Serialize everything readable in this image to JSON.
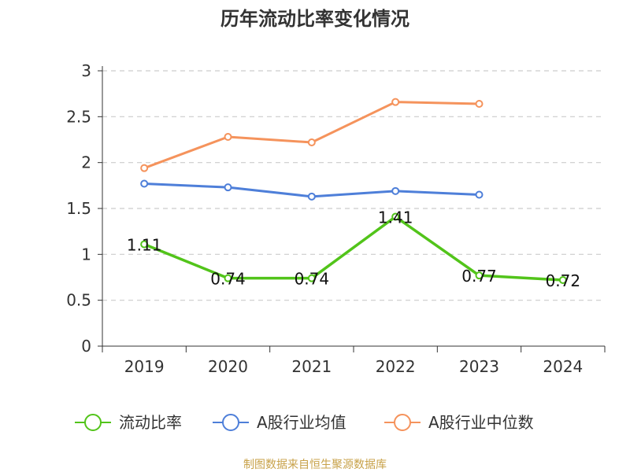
{
  "title": "历年流动比率变化情况",
  "source": "制图数据来自恒生聚源数据库",
  "chart_data": {
    "type": "line",
    "categories": [
      "2019",
      "2020",
      "2021",
      "2022",
      "2023",
      "2024"
    ],
    "ylim": [
      0,
      3
    ],
    "yticks": [
      "0",
      "0.5",
      "1",
      "1.5",
      "2",
      "2.5",
      "3"
    ],
    "grid": true,
    "legend_position": "bottom",
    "series": [
      {
        "name": "流动比率",
        "color": "#52c41a",
        "values": [
          1.11,
          0.74,
          0.74,
          1.41,
          0.77,
          0.72
        ],
        "labels": [
          "1.11",
          "0.74",
          "0.74",
          "1.41",
          "0.77",
          "0.72"
        ]
      },
      {
        "name": "A股行业均值",
        "color": "#4e7fd9",
        "values": [
          1.77,
          1.73,
          1.63,
          1.69,
          1.65,
          null
        ]
      },
      {
        "name": "A股行业中位数",
        "color": "#f5935c",
        "values": [
          1.94,
          2.28,
          2.22,
          2.66,
          2.64,
          null
        ]
      }
    ]
  }
}
